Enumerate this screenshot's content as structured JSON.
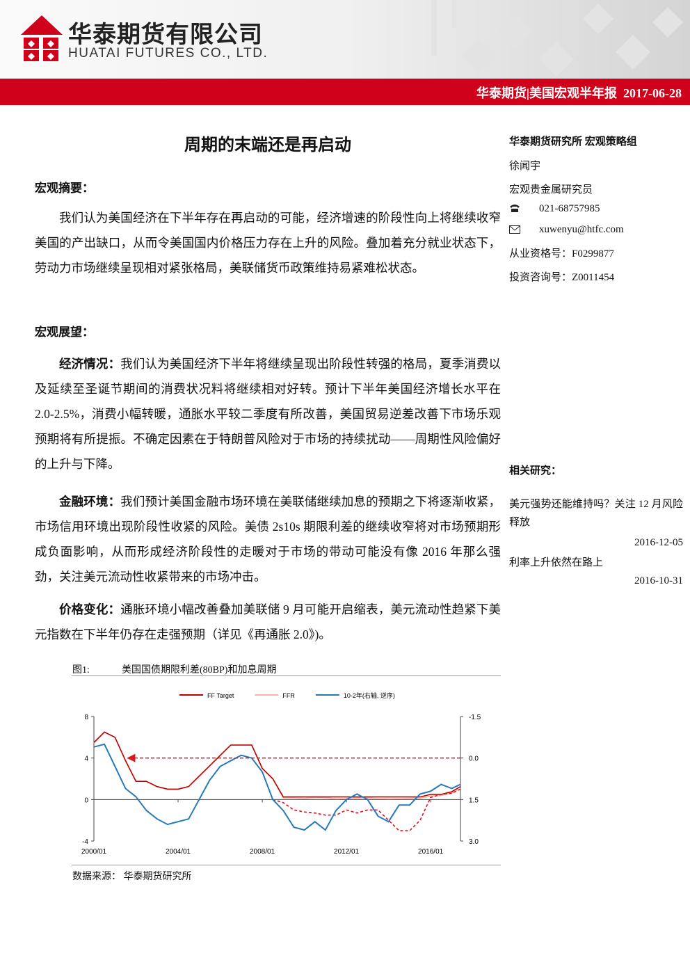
{
  "header": {
    "company_cn": "华泰期货有限公司",
    "company_en": "HUATAI FUTURES CO., LTD.",
    "bar_text": "华泰期货|美国宏观半年报",
    "date": "2017-06-28"
  },
  "title": "周期的末端还是再启动",
  "abstract": {
    "heading": "宏观摘要：",
    "text": "我们认为美国经济在下半年存在再启动的可能，经济增速的阶段性向上将继续收窄美国的产出缺口，从而令美国国内价格压力存在上升的风险。叠加着充分就业状态下，劳动力市场继续呈现相对紧张格局，美联储货币政策维持易紧难松状态。"
  },
  "outlook": {
    "heading": "宏观展望：",
    "paragraphs": [
      {
        "lead": "经济情况：",
        "text": "我们认为美国经济下半年将继续呈现出阶段性转强的格局，夏季消费以及延续至圣诞节期间的消费状况料将继续相对好转。预计下半年美国经济增长水平在 2.0-2.5%，消费小幅转暖，通胀水平较二季度有所改善，美国贸易逆差改善下市场乐观预期将有所提振。不确定因素在于特朗普风险对于市场的持续扰动——周期性风险偏好的上升与下降。"
      },
      {
        "lead": "金融环境：",
        "text": "我们预计美国金融市场环境在美联储继续加息的预期之下将逐渐收紧，市场信用环境出现阶段性收紧的风险。美债 2s10s 期限利差的继续收窄将对市场预期形成负面影响，从而形成经济阶段性的走暖对于市场的带动可能没有像 2016 年那么强劲，关注美元流动性收紧带来的市场冲击。"
      },
      {
        "lead": "价格变化：",
        "text": "通胀环境小幅改善叠加美联储 9 月可能开启缩表，美元流动性趋紧下美元指数在下半年仍存在走强预期（详见《再通胀 2.0》)。"
      }
    ]
  },
  "sidebar": {
    "org": "华泰期货研究所  宏观策略组",
    "author": "徐闻宇",
    "role": "宏观贵金属研究员",
    "phone": "021-68757985",
    "email": "xuwenyu@htfc.com",
    "license": "从业资格号：F0299877",
    "consult": "投资咨询号：Z0011454",
    "related_heading": "相关研究：",
    "related": [
      {
        "title": "美元强势还能维持吗？关注 12 月风险释放",
        "date": "2016-12-05"
      },
      {
        "title": "利率上升依然在路上",
        "date": "2016-10-31"
      }
    ]
  },
  "figure": {
    "label": "图1:",
    "caption": "美国国债期限利差(80BP)和加息周期",
    "source": "数据来源： 华泰期货研究所"
  },
  "chart_data": {
    "type": "line",
    "x": [
      "2000/01",
      "2000/07",
      "2001/01",
      "2001/07",
      "2002/01",
      "2002/07",
      "2003/01",
      "2003/07",
      "2004/01",
      "2004/07",
      "2005/01",
      "2005/07",
      "2006/01",
      "2006/07",
      "2007/01",
      "2007/07",
      "2008/01",
      "2008/07",
      "2009/01",
      "2009/07",
      "2010/01",
      "2010/07",
      "2011/01",
      "2011/07",
      "2012/01",
      "2012/07",
      "2013/01",
      "2013/07",
      "2014/01",
      "2014/07",
      "2015/01",
      "2015/07",
      "2016/01",
      "2016/07",
      "2017/01",
      "2017/06"
    ],
    "series": [
      {
        "name": "FF Target",
        "color": "#c00000",
        "values": [
          5.5,
          6.5,
          6.0,
          3.75,
          1.75,
          1.75,
          1.25,
          1.0,
          1.0,
          1.25,
          2.25,
          3.25,
          4.25,
          5.25,
          5.25,
          5.25,
          3.0,
          2.0,
          0.25,
          0.25,
          0.25,
          0.25,
          0.25,
          0.25,
          0.25,
          0.25,
          0.25,
          0.25,
          0.25,
          0.25,
          0.25,
          0.25,
          0.5,
          0.5,
          0.75,
          1.25
        ]
      },
      {
        "name": "FFR",
        "color": "#f4b6a8",
        "values": [
          5.45,
          6.5,
          5.98,
          3.77,
          1.73,
          1.73,
          1.24,
          1.01,
          1.0,
          1.26,
          2.28,
          3.26,
          4.29,
          5.24,
          5.25,
          5.26,
          3.0,
          2.01,
          0.15,
          0.16,
          0.11,
          0.18,
          0.17,
          0.07,
          0.08,
          0.16,
          0.14,
          0.09,
          0.07,
          0.09,
          0.11,
          0.13,
          0.34,
          0.39,
          0.65,
          1.04
        ]
      },
      {
        "name": "10-2年(右轴, 逆序)",
        "color": "#2779b8",
        "axis": "y2",
        "values": [
          -0.4,
          -0.5,
          0.3,
          1.1,
          1.4,
          1.9,
          2.2,
          2.4,
          2.3,
          2.2,
          1.5,
          0.8,
          0.3,
          0.1,
          -0.1,
          0.0,
          0.5,
          1.5,
          1.9,
          2.5,
          2.6,
          2.3,
          2.6,
          1.9,
          1.5,
          1.3,
          1.5,
          2.1,
          2.3,
          1.7,
          1.7,
          1.3,
          1.2,
          0.95,
          1.1,
          0.95
        ]
      },
      {
        "color": "#e0141e",
        "dashed": true,
        "values": [
          null,
          null,
          null,
          null,
          null,
          null,
          null,
          null,
          null,
          null,
          null,
          null,
          null,
          null,
          null,
          null,
          null,
          0,
          -0.3,
          -1.0,
          -1.2,
          -1.3,
          -1.5,
          -1.5,
          -1.0,
          -1.3,
          -1.0,
          -1.0,
          -2.0,
          -3.0,
          -3.0,
          -2.0,
          0.2,
          0.5,
          0.6,
          1.0
        ]
      }
    ],
    "annotations": [
      {
        "type": "arrow",
        "x_from": "2017/06",
        "x_to": "2001/09",
        "y": 4,
        "color": "#e0141e"
      }
    ],
    "xlim": [
      "2000/01",
      "2017/06"
    ],
    "xticks": [
      "2000/01",
      "2004/01",
      "2008/01",
      "2012/01",
      "2016/01"
    ],
    "ylim": [
      -4,
      8
    ],
    "yticks": [
      -4,
      0,
      4,
      8
    ],
    "y2lim": [
      3,
      -1.5
    ],
    "y2ticks": [
      {
        "value": 3,
        "label": "3.0"
      },
      1.5,
      {
        "value": 0,
        "label": "0.0"
      },
      -1.5
    ]
  }
}
